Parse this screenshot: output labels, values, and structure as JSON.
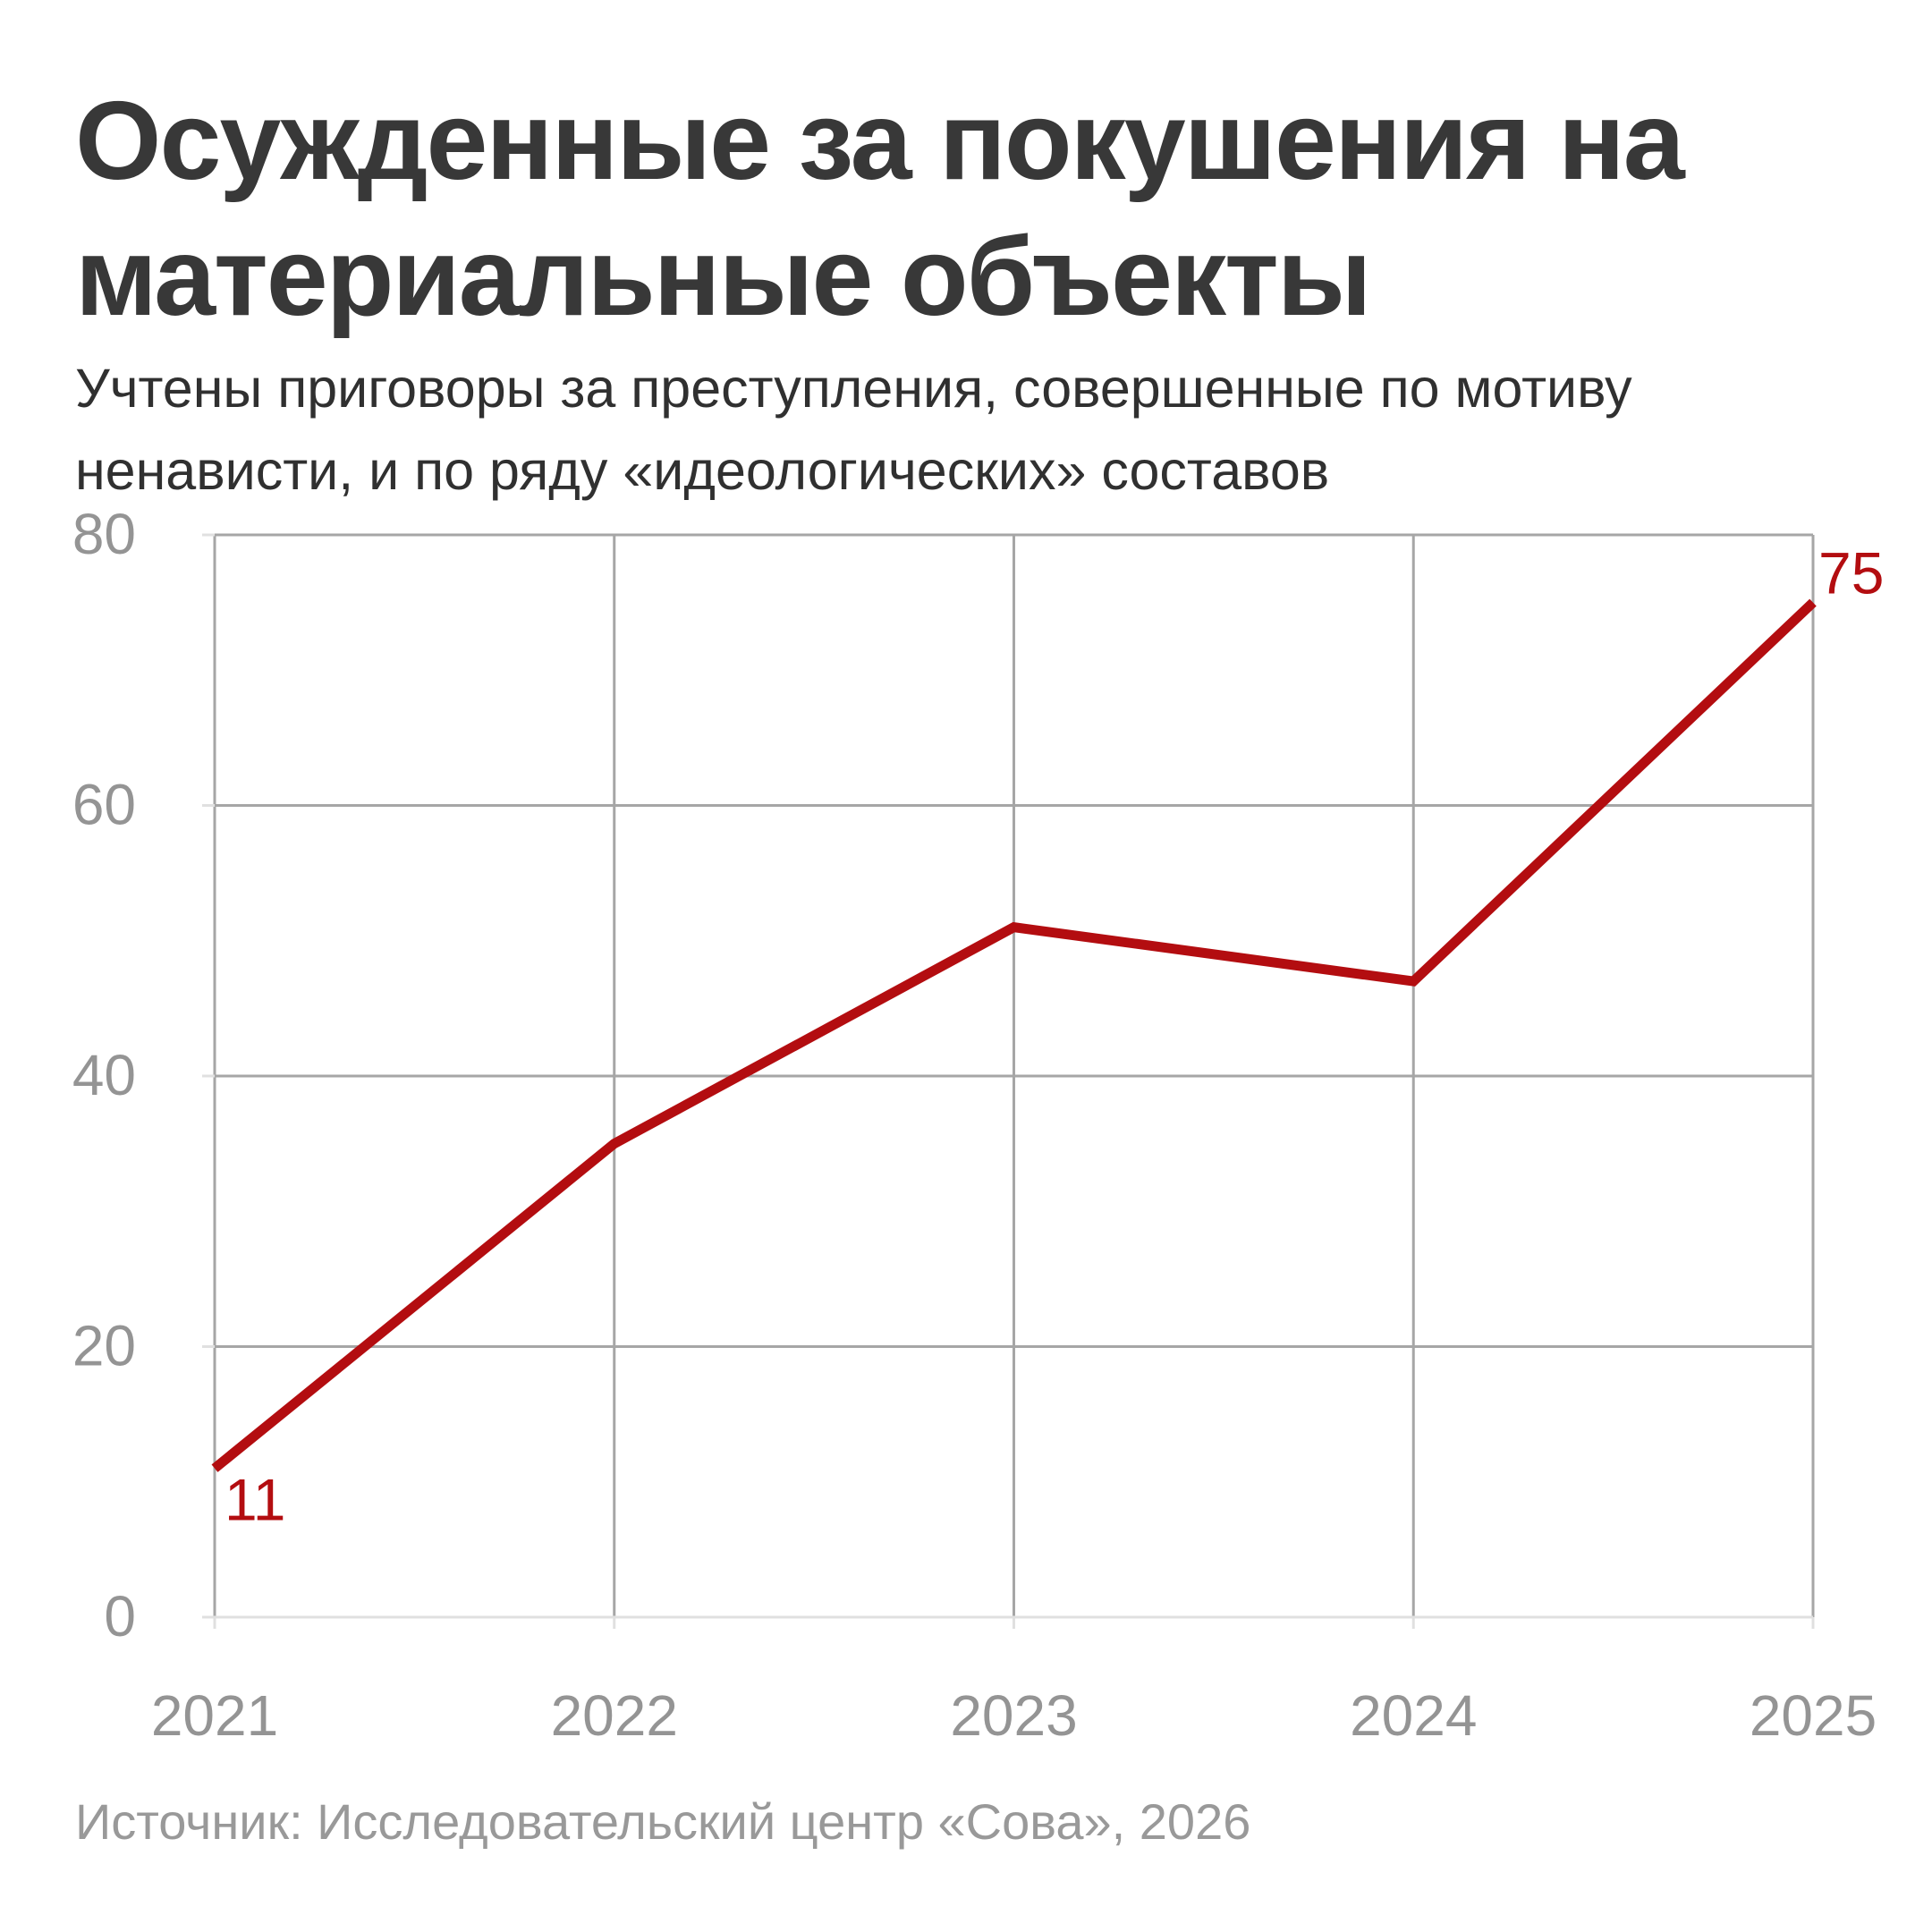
{
  "header": {
    "title_lines": [
      "Осужденные за покушения на",
      "материальные объекты"
    ],
    "subtitle_lines": [
      "Учтены приговоры за преступления, совершенные по мотиву",
      "ненависти, и по ряду «идеологических» составов"
    ]
  },
  "footer": {
    "source": "Источник: Исследовательский центр «Сова», 2026"
  },
  "chart_data": {
    "type": "line",
    "title": "Осужденные за покушения на материальные объекты",
    "subtitle": "Учтены приговоры за преступления, совершенные по мотиву ненависти, и по ряду «идеологических» составов",
    "source": "Источник: Исследовательский центр «Сова», 2026",
    "x": [
      2021,
      2022,
      2023,
      2024,
      2025
    ],
    "xticks": [
      "2021",
      "2022",
      "2023",
      "2024",
      "2025"
    ],
    "series": [
      {
        "name": "Осужденные",
        "values": [
          11,
          35,
          51,
          47,
          75
        ]
      }
    ],
    "point_labels": {
      "first": "11",
      "last": "75"
    },
    "yticks": [
      0,
      20,
      40,
      60,
      80
    ],
    "ylim": [
      0,
      80
    ],
    "grid": true,
    "legend": "none",
    "xlabel": "",
    "ylabel": "",
    "colors": {
      "line": "#b30d10",
      "point_label": "#b30d10",
      "grid": "#a6a6a6",
      "axis": "#e0e0e0",
      "tick_label": "#949494"
    }
  }
}
